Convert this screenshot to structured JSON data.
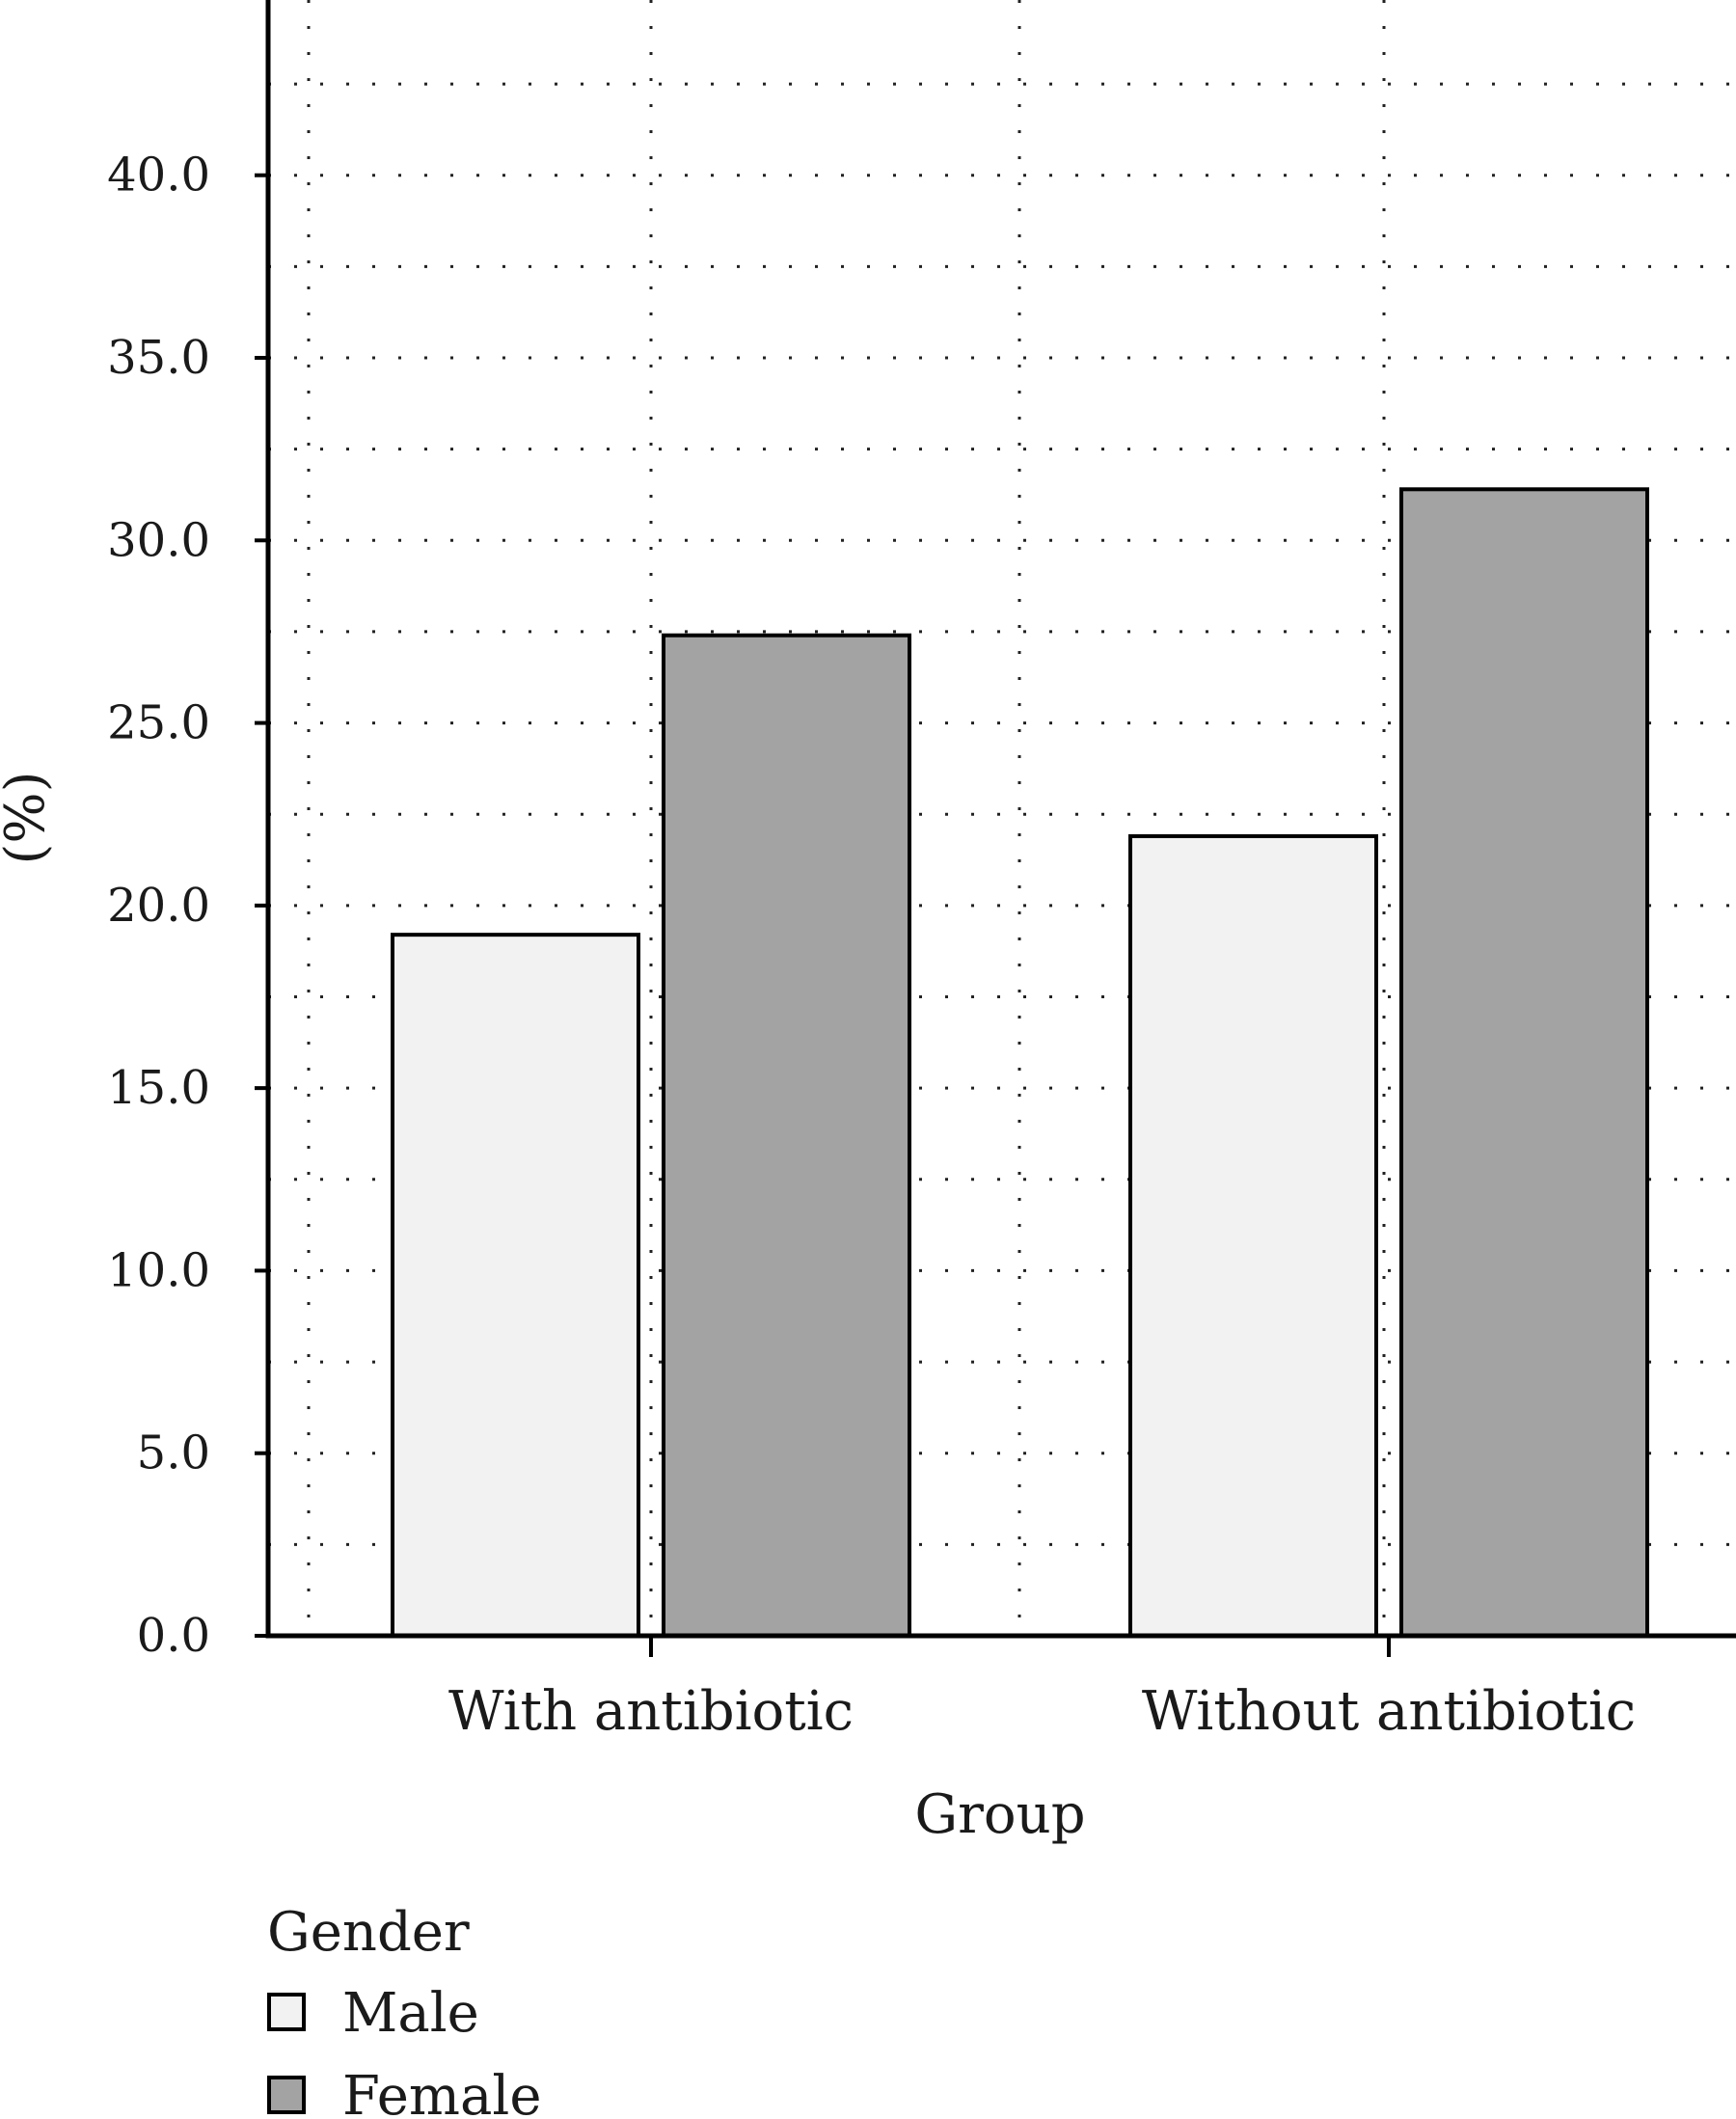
{
  "chart_data": {
    "type": "bar",
    "categories": [
      "With antibiotic",
      "Without antibiotic"
    ],
    "series": [
      {
        "name": "Male",
        "values": [
          19.2,
          21.9
        ]
      },
      {
        "name": "Female",
        "values": [
          27.4,
          31.4
        ]
      }
    ],
    "xlabel": "Group",
    "ylabel": "(%)",
    "ylim": [
      0,
      44.8
    ],
    "yticks": [
      0,
      5,
      10,
      15,
      20,
      25,
      30,
      35,
      40
    ],
    "ytick_labels": [
      "0.0",
      "5.0",
      "10.0",
      "15.0",
      "20.0",
      "25.0",
      "30.0",
      "35.0",
      "40.0"
    ],
    "grid": "dotted, major and minor",
    "legend_title": "Gender",
    "legend_position": "bottom-left, below plot",
    "colors": {
      "Male": "#f2f2f2",
      "Female": "#a3a3a3"
    }
  }
}
